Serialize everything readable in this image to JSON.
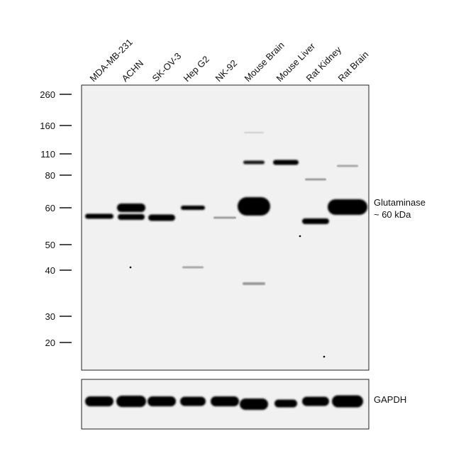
{
  "lanes": [
    "MDA-MB-231",
    "ACHN",
    "SK-OV-3",
    "Hep G2",
    "NK-92",
    "Mouse Brain",
    "Mouse Liver",
    "Rat Kidney",
    "Rat Brain"
  ],
  "markers": [
    "260",
    "160",
    "110",
    "80",
    "60",
    "50",
    "40",
    "30",
    "20"
  ],
  "annotations": {
    "target": "Glutaminase",
    "size": "~ 60 kDa",
    "loading_control": "GAPDH"
  }
}
